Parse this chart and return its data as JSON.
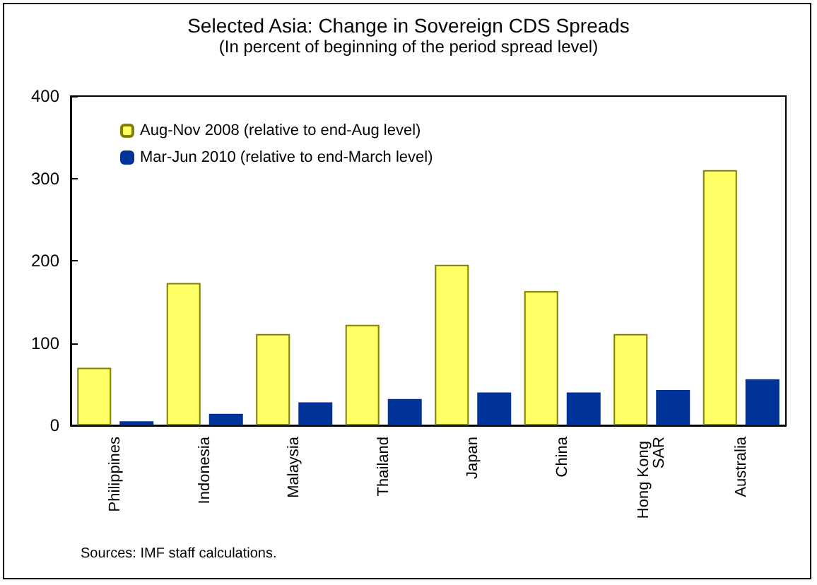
{
  "chart_data": {
    "type": "bar",
    "title": "Selected Asia: Change in Sovereign CDS Spreads",
    "subtitle": "(In percent of beginning of the period spread level)",
    "categories": [
      "Philippines",
      "Indonesia",
      "Malaysia",
      "Thailand",
      "Japan",
      "China",
      "Hong Kong SAR",
      "Australia"
    ],
    "series": [
      {
        "name": "Aug-Nov 2008 (relative to end-Aug level)",
        "color": "#ffff66",
        "values": [
          70,
          173,
          111,
          122,
          195,
          163,
          111,
          310
        ]
      },
      {
        "name": "Mar-Jun 2010 (relative to end-March level)",
        "color": "#003399",
        "values": [
          5,
          14,
          28,
          32,
          40,
          40,
          43,
          56
        ]
      }
    ],
    "ylim": [
      0,
      400
    ],
    "yticks": [
      0,
      100,
      200,
      300,
      400
    ],
    "grid": false,
    "legend": "top left",
    "annotations": [
      "Sources: IMF staff calculations."
    ]
  }
}
